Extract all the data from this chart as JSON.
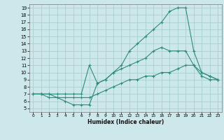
{
  "xlabel": "Humidex (Indice chaleur)",
  "bg_color": "#cce8ea",
  "grid_color": "#aacfcf",
  "line_color": "#2e8b7a",
  "xlim": [
    -0.5,
    23.5
  ],
  "ylim": [
    4.5,
    19.5
  ],
  "xticks": [
    0,
    1,
    2,
    3,
    4,
    5,
    6,
    7,
    8,
    9,
    10,
    11,
    12,
    13,
    14,
    15,
    16,
    17,
    18,
    19,
    20,
    21,
    22,
    23
  ],
  "yticks": [
    5,
    6,
    7,
    8,
    9,
    10,
    11,
    12,
    13,
    14,
    15,
    16,
    17,
    18,
    19
  ],
  "line1_x": [
    0,
    1,
    2,
    3,
    4,
    5,
    6,
    7,
    8,
    9,
    10,
    11,
    12,
    13,
    14,
    15,
    16,
    17,
    18,
    19,
    20,
    21,
    22,
    23
  ],
  "line1_y": [
    7,
    7,
    7,
    6.5,
    6,
    5.5,
    5.5,
    5.5,
    8.5,
    9,
    10,
    11,
    13,
    14,
    15,
    16,
    17,
    18.5,
    19,
    19,
    13,
    10,
    9.5,
    9
  ],
  "line2_x": [
    0,
    1,
    2,
    3,
    4,
    5,
    6,
    7,
    8,
    9,
    10,
    11,
    12,
    13,
    14,
    15,
    16,
    17,
    18,
    19,
    20,
    21,
    22,
    23
  ],
  "line2_y": [
    7,
    7,
    7,
    7,
    7,
    7,
    7,
    11,
    8.5,
    9,
    10,
    10.5,
    11,
    11.5,
    12,
    13,
    13.5,
    13,
    13,
    13,
    11,
    10,
    9.5,
    9
  ],
  "line3_x": [
    0,
    1,
    2,
    3,
    4,
    5,
    6,
    7,
    8,
    9,
    10,
    11,
    12,
    13,
    14,
    15,
    16,
    17,
    18,
    19,
    20,
    21,
    22,
    23
  ],
  "line3_y": [
    7,
    7,
    6.5,
    6.5,
    6.5,
    6.5,
    6.5,
    6.5,
    7,
    7.5,
    8,
    8.5,
    9,
    9,
    9.5,
    9.5,
    10,
    10,
    10.5,
    11,
    11,
    9.5,
    9,
    9
  ]
}
